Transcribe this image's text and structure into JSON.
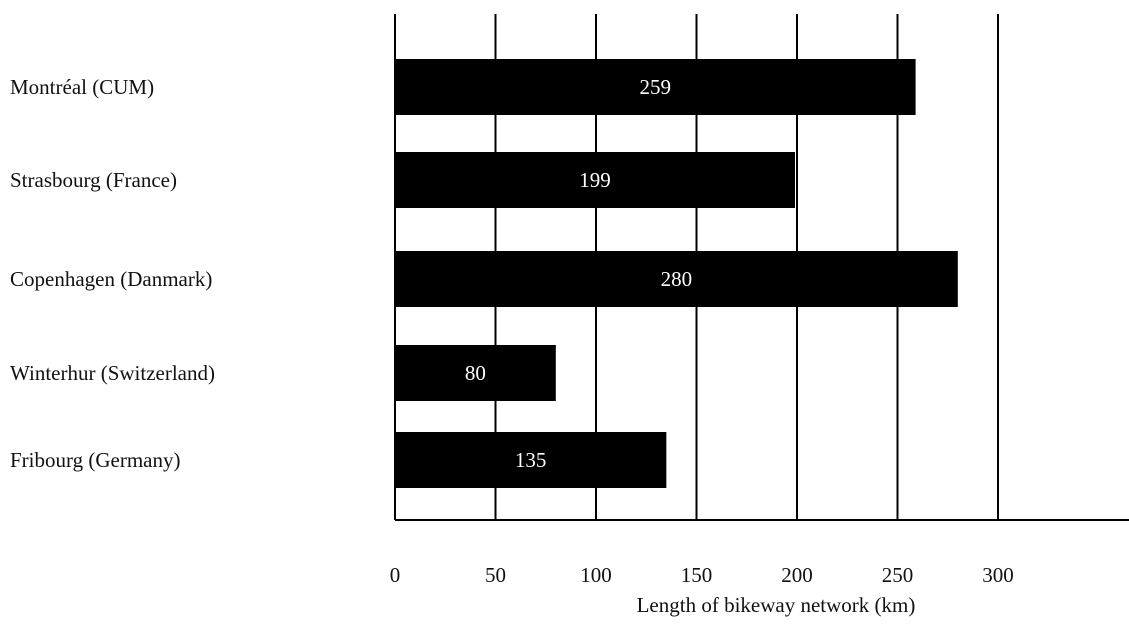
{
  "chart_data": {
    "type": "bar",
    "orientation": "horizontal",
    "title": "",
    "xlabel": "Length of  bikeway network (km)",
    "ylabel": "",
    "categories": [
      "Montréal (CUM)",
      "Strasbourg (France)",
      "Copenhagen (Danmark)",
      "Winterhur (Switzerland)",
      "Fribourg (Germany)"
    ],
    "values": [
      259,
      199,
      280,
      80,
      135
    ],
    "xlim": [
      0,
      300
    ],
    "xticks": [
      0,
      50,
      100,
      150,
      200,
      250,
      300
    ],
    "grid": "vertical",
    "bar_color": "#000000",
    "data_label_color": "#ffffff"
  }
}
